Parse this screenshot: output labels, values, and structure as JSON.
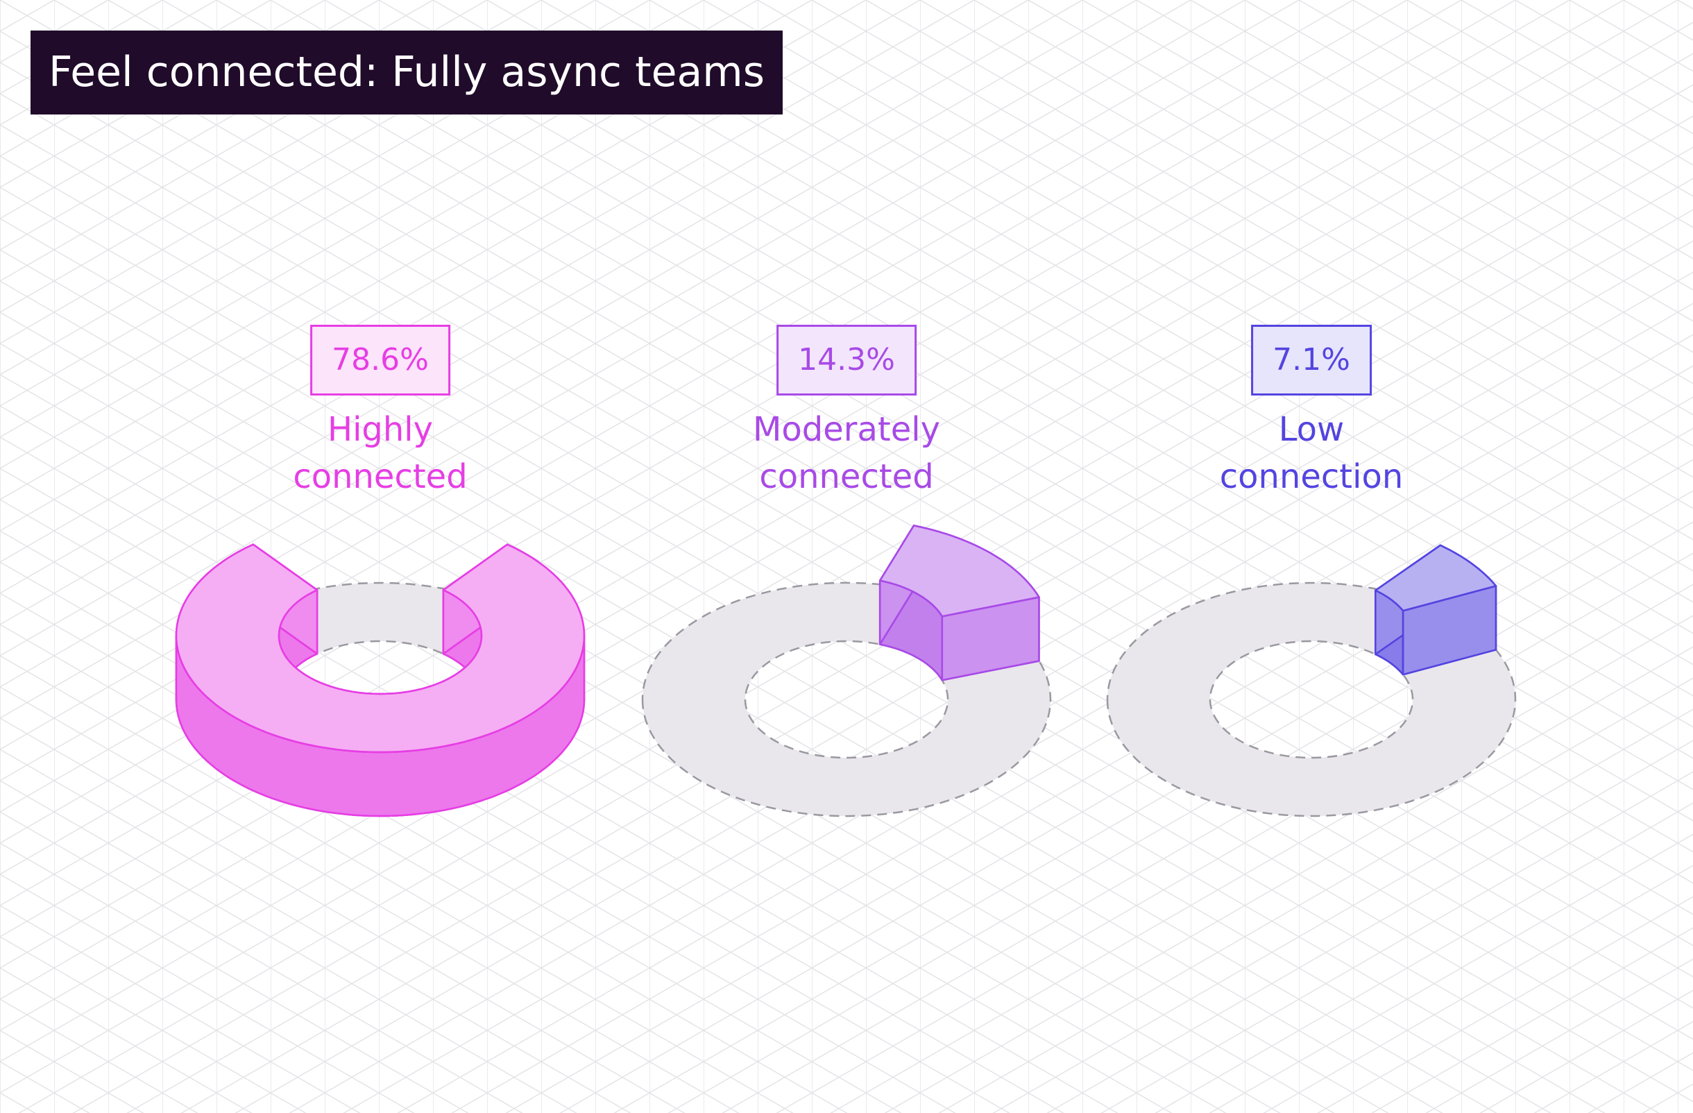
{
  "chart_data": {
    "type": "donut",
    "title": "Feel connected: Fully async teams",
    "categories": [
      "Highly connected",
      "Moderately connected",
      "Low connection"
    ],
    "values": [
      78.6,
      14.3,
      7.1
    ],
    "value_labels": [
      "78.6%",
      "14.3%",
      "7.1%"
    ],
    "colors": [
      "#e63ee4",
      "#a84ae6",
      "#5444e0"
    ]
  }
}
